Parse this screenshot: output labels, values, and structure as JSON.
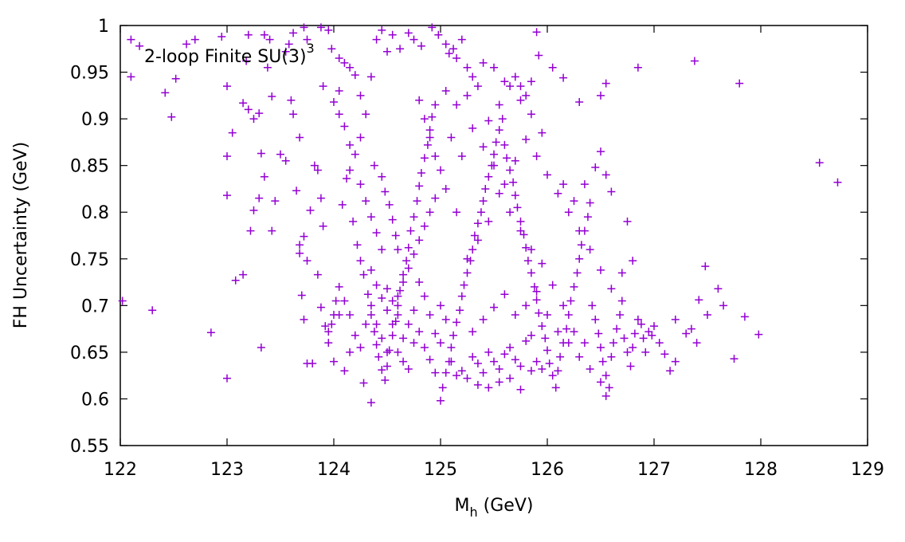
{
  "chart_data": {
    "type": "scatter",
    "annotation": {
      "text": "2-loop Finite SU(3)",
      "superscript": "3"
    },
    "xlabel": {
      "main": "M",
      "subscript": "h",
      "rest": " (GeV)"
    },
    "ylabel": "FH Uncertainty (GeV)",
    "xlim": [
      122,
      129
    ],
    "ylim": [
      0.55,
      1.0
    ],
    "x_ticks": [
      "122",
      "123",
      "124",
      "125",
      "126",
      "127",
      "128",
      "129"
    ],
    "y_ticks": [
      "0.55",
      "0.6",
      "0.65",
      "0.7",
      "0.75",
      "0.8",
      "0.85",
      "0.9",
      "0.95",
      "1"
    ],
    "grid": false,
    "marker": "plus",
    "color": "#9400d3",
    "points": [
      [
        122.02,
        0.705
      ],
      [
        122.1,
        0.985
      ],
      [
        122.18,
        0.978
      ],
      [
        122.1,
        0.945
      ],
      [
        122.42,
        0.928
      ],
      [
        122.48,
        0.902
      ],
      [
        122.52,
        0.943
      ],
      [
        122.62,
        0.98
      ],
      [
        122.7,
        0.985
      ],
      [
        122.95,
        0.988
      ],
      [
        123.0,
        0.935
      ],
      [
        123.05,
        0.885
      ],
      [
        123.0,
        0.86
      ],
      [
        123.2,
        0.99
      ],
      [
        123.18,
        0.962
      ],
      [
        123.15,
        0.917
      ],
      [
        123.2,
        0.91
      ],
      [
        123.25,
        0.9
      ],
      [
        123.3,
        0.906
      ],
      [
        123.35,
        0.99
      ],
      [
        123.4,
        0.985
      ],
      [
        123.38,
        0.955
      ],
      [
        123.42,
        0.924
      ],
      [
        123.55,
        0.972
      ],
      [
        123.58,
        0.98
      ],
      [
        123.62,
        0.992
      ],
      [
        123.72,
        0.998
      ],
      [
        123.75,
        0.985
      ],
      [
        123.88,
        0.998
      ],
      [
        123.95,
        0.995
      ],
      [
        123.98,
        0.975
      ],
      [
        124.05,
        0.965
      ],
      [
        124.1,
        0.96
      ],
      [
        124.15,
        0.955
      ],
      [
        124.2,
        0.947
      ],
      [
        123.9,
        0.935
      ],
      [
        124.05,
        0.93
      ],
      [
        124.25,
        0.925
      ],
      [
        124.35,
        0.945
      ],
      [
        124.4,
        0.985
      ],
      [
        124.45,
        0.995
      ],
      [
        124.55,
        0.99
      ],
      [
        124.5,
        0.972
      ],
      [
        124.62,
        0.975
      ],
      [
        124.7,
        0.992
      ],
      [
        124.75,
        0.985
      ],
      [
        124.82,
        0.978
      ],
      [
        124.92,
        0.998
      ],
      [
        124.98,
        0.99
      ],
      [
        125.05,
        0.98
      ],
      [
        125.12,
        0.975
      ],
      [
        125.08,
        0.97
      ],
      [
        125.15,
        0.965
      ],
      [
        125.2,
        0.985
      ],
      [
        125.25,
        0.955
      ],
      [
        125.3,
        0.945
      ],
      [
        125.4,
        0.96
      ],
      [
        125.5,
        0.955
      ],
      [
        125.6,
        0.94
      ],
      [
        125.7,
        0.945
      ],
      [
        125.75,
        0.935
      ],
      [
        125.8,
        0.925
      ],
      [
        125.85,
        0.94
      ],
      [
        125.9,
        0.993
      ],
      [
        125.92,
        0.968
      ],
      [
        126.05,
        0.955
      ],
      [
        126.15,
        0.944
      ],
      [
        126.3,
        0.918
      ],
      [
        126.5,
        0.925
      ],
      [
        126.55,
        0.938
      ],
      [
        126.85,
        0.955
      ],
      [
        127.38,
        0.962
      ],
      [
        127.8,
        0.938
      ],
      [
        128.55,
        0.853
      ],
      [
        128.72,
        0.832
      ],
      [
        122.3,
        0.695
      ],
      [
        122.85,
        0.671
      ],
      [
        123.0,
        0.622
      ],
      [
        123.0,
        0.818
      ],
      [
        123.08,
        0.727
      ],
      [
        123.15,
        0.733
      ],
      [
        123.22,
        0.78
      ],
      [
        123.25,
        0.802
      ],
      [
        123.3,
        0.815
      ],
      [
        123.32,
        0.655
      ],
      [
        123.32,
        0.863
      ],
      [
        123.35,
        0.838
      ],
      [
        123.42,
        0.78
      ],
      [
        123.45,
        0.812
      ],
      [
        123.5,
        0.862
      ],
      [
        123.55,
        0.855
      ],
      [
        123.6,
        0.92
      ],
      [
        123.62,
        0.905
      ],
      [
        123.68,
        0.88
      ],
      [
        123.65,
        0.823
      ],
      [
        123.68,
        0.765
      ],
      [
        123.68,
        0.756
      ],
      [
        123.7,
        0.711
      ],
      [
        123.72,
        0.774
      ],
      [
        123.75,
        0.748
      ],
      [
        123.78,
        0.802
      ],
      [
        123.82,
        0.85
      ],
      [
        123.85,
        0.845
      ],
      [
        123.88,
        0.815
      ],
      [
        123.9,
        0.785
      ],
      [
        123.72,
        0.685
      ],
      [
        123.75,
        0.638
      ],
      [
        123.8,
        0.638
      ],
      [
        123.85,
        0.733
      ],
      [
        123.88,
        0.698
      ],
      [
        123.92,
        0.678
      ],
      [
        123.95,
        0.672
      ],
      [
        123.98,
        0.68
      ],
      [
        124.0,
        0.64
      ],
      [
        124.02,
        0.705
      ],
      [
        124.05,
        0.69
      ],
      [
        124.08,
        0.808
      ],
      [
        124.12,
        0.836
      ],
      [
        124.15,
        0.845
      ],
      [
        124.18,
        0.79
      ],
      [
        124.22,
        0.765
      ],
      [
        124.25,
        0.748
      ],
      [
        124.28,
        0.733
      ],
      [
        124.32,
        0.712
      ],
      [
        124.35,
        0.69
      ],
      [
        124.38,
        0.672
      ],
      [
        124.4,
        0.658
      ],
      [
        124.42,
        0.645
      ],
      [
        124.45,
        0.631
      ],
      [
        124.28,
        0.617
      ],
      [
        124.35,
        0.596
      ],
      [
        124.48,
        0.62
      ],
      [
        124.5,
        0.635
      ],
      [
        124.52,
        0.652
      ],
      [
        124.55,
        0.668
      ],
      [
        124.58,
        0.683
      ],
      [
        124.6,
        0.7
      ],
      [
        124.62,
        0.716
      ],
      [
        124.65,
        0.733
      ],
      [
        124.68,
        0.748
      ],
      [
        124.7,
        0.762
      ],
      [
        124.72,
        0.78
      ],
      [
        124.75,
        0.795
      ],
      [
        124.78,
        0.812
      ],
      [
        124.8,
        0.828
      ],
      [
        124.82,
        0.842
      ],
      [
        124.85,
        0.858
      ],
      [
        124.88,
        0.872
      ],
      [
        124.9,
        0.888
      ],
      [
        124.92,
        0.902
      ],
      [
        124.95,
        0.915
      ],
      [
        124.3,
        0.905
      ],
      [
        124.25,
        0.88
      ],
      [
        124.2,
        0.862
      ],
      [
        124.15,
        0.872
      ],
      [
        124.1,
        0.892
      ],
      [
        124.05,
        0.905
      ],
      [
        124.0,
        0.918
      ],
      [
        124.38,
        0.85
      ],
      [
        124.45,
        0.838
      ],
      [
        124.48,
        0.822
      ],
      [
        124.52,
        0.808
      ],
      [
        124.55,
        0.792
      ],
      [
        124.58,
        0.775
      ],
      [
        124.6,
        0.76
      ],
      [
        124.45,
        0.76
      ],
      [
        124.4,
        0.778
      ],
      [
        124.35,
        0.795
      ],
      [
        124.3,
        0.812
      ],
      [
        124.25,
        0.83
      ],
      [
        125.0,
        0.598
      ],
      [
        125.02,
        0.612
      ],
      [
        125.05,
        0.628
      ],
      [
        125.08,
        0.64
      ],
      [
        125.1,
        0.655
      ],
      [
        125.12,
        0.668
      ],
      [
        125.15,
        0.682
      ],
      [
        125.18,
        0.695
      ],
      [
        125.2,
        0.71
      ],
      [
        125.22,
        0.722
      ],
      [
        125.25,
        0.735
      ],
      [
        125.28,
        0.748
      ],
      [
        125.3,
        0.76
      ],
      [
        125.32,
        0.775
      ],
      [
        125.35,
        0.788
      ],
      [
        125.38,
        0.8
      ],
      [
        125.4,
        0.812
      ],
      [
        125.42,
        0.825
      ],
      [
        125.45,
        0.838
      ],
      [
        125.48,
        0.85
      ],
      [
        125.5,
        0.862
      ],
      [
        125.52,
        0.875
      ],
      [
        125.55,
        0.888
      ],
      [
        125.58,
        0.9
      ],
      [
        125.6,
        0.872
      ],
      [
        125.62,
        0.858
      ],
      [
        125.65,
        0.845
      ],
      [
        125.68,
        0.832
      ],
      [
        125.7,
        0.818
      ],
      [
        125.72,
        0.805
      ],
      [
        125.75,
        0.79
      ],
      [
        125.78,
        0.776
      ],
      [
        125.8,
        0.762
      ],
      [
        125.82,
        0.748
      ],
      [
        125.85,
        0.735
      ],
      [
        125.88,
        0.72
      ],
      [
        125.9,
        0.706
      ],
      [
        125.92,
        0.692
      ],
      [
        125.95,
        0.678
      ],
      [
        125.98,
        0.665
      ],
      [
        126.0,
        0.652
      ],
      [
        126.02,
        0.638
      ],
      [
        126.05,
        0.625
      ],
      [
        126.08,
        0.612
      ],
      [
        126.1,
        0.63
      ],
      [
        126.12,
        0.645
      ],
      [
        126.15,
        0.66
      ],
      [
        126.18,
        0.675
      ],
      [
        126.2,
        0.69
      ],
      [
        126.22,
        0.705
      ],
      [
        126.25,
        0.72
      ],
      [
        126.28,
        0.735
      ],
      [
        126.3,
        0.75
      ],
      [
        126.32,
        0.765
      ],
      [
        126.35,
        0.78
      ],
      [
        126.38,
        0.795
      ],
      [
        126.4,
        0.81
      ],
      [
        126.42,
        0.7
      ],
      [
        126.45,
        0.685
      ],
      [
        126.48,
        0.67
      ],
      [
        126.5,
        0.655
      ],
      [
        126.52,
        0.64
      ],
      [
        126.55,
        0.625
      ],
      [
        126.58,
        0.612
      ],
      [
        126.6,
        0.645
      ],
      [
        126.62,
        0.66
      ],
      [
        126.65,
        0.675
      ],
      [
        126.68,
        0.69
      ],
      [
        126.7,
        0.705
      ],
      [
        126.72,
        0.665
      ],
      [
        126.75,
        0.65
      ],
      [
        126.78,
        0.635
      ],
      [
        126.8,
        0.655
      ],
      [
        126.82,
        0.67
      ],
      [
        126.85,
        0.685
      ],
      [
        126.88,
        0.68
      ],
      [
        126.9,
        0.665
      ],
      [
        126.92,
        0.65
      ],
      [
        126.95,
        0.672
      ],
      [
        126.98,
        0.668
      ],
      [
        127.0,
        0.678
      ],
      [
        127.05,
        0.66
      ],
      [
        127.1,
        0.648
      ],
      [
        127.15,
        0.63
      ],
      [
        127.2,
        0.685
      ],
      [
        127.3,
        0.67
      ],
      [
        127.35,
        0.675
      ],
      [
        127.4,
        0.66
      ],
      [
        127.42,
        0.706
      ],
      [
        127.5,
        0.69
      ],
      [
        127.6,
        0.718
      ],
      [
        127.65,
        0.7
      ],
      [
        127.75,
        0.643
      ],
      [
        127.85,
        0.688
      ],
      [
        127.98,
        0.669
      ],
      [
        127.48,
        0.742
      ],
      [
        127.2,
        0.64
      ],
      [
        125.2,
        0.63
      ],
      [
        125.25,
        0.622
      ],
      [
        125.3,
        0.645
      ],
      [
        125.35,
        0.638
      ],
      [
        125.4,
        0.628
      ],
      [
        125.45,
        0.65
      ],
      [
        125.5,
        0.64
      ],
      [
        125.55,
        0.632
      ],
      [
        125.6,
        0.648
      ],
      [
        125.65,
        0.655
      ],
      [
        125.7,
        0.642
      ],
      [
        125.75,
        0.635
      ],
      [
        125.8,
        0.662
      ],
      [
        125.85,
        0.668
      ],
      [
        125.9,
        0.64
      ],
      [
        125.95,
        0.632
      ],
      [
        125.45,
        0.612
      ],
      [
        125.55,
        0.618
      ],
      [
        125.65,
        0.622
      ],
      [
        125.75,
        0.61
      ],
      [
        125.85,
        0.63
      ],
      [
        125.35,
        0.615
      ],
      [
        125.15,
        0.625
      ],
      [
        125.1,
        0.64
      ],
      [
        125.3,
        0.672
      ],
      [
        125.4,
        0.685
      ],
      [
        125.5,
        0.698
      ],
      [
        125.6,
        0.712
      ],
      [
        125.7,
        0.69
      ],
      [
        125.8,
        0.7
      ],
      [
        125.9,
        0.715
      ],
      [
        126.0,
        0.69
      ],
      [
        126.1,
        0.672
      ],
      [
        126.2,
        0.66
      ],
      [
        126.3,
        0.645
      ],
      [
        126.4,
        0.632
      ],
      [
        126.5,
        0.618
      ],
      [
        126.55,
        0.603
      ],
      [
        126.35,
        0.66
      ],
      [
        126.25,
        0.672
      ],
      [
        126.15,
        0.7
      ],
      [
        126.05,
        0.722
      ],
      [
        125.95,
        0.745
      ],
      [
        125.85,
        0.76
      ],
      [
        125.75,
        0.78
      ],
      [
        125.65,
        0.8
      ],
      [
        125.55,
        0.82
      ],
      [
        125.45,
        0.79
      ],
      [
        125.35,
        0.77
      ],
      [
        125.25,
        0.75
      ],
      [
        125.15,
        0.8
      ],
      [
        125.05,
        0.825
      ],
      [
        125.0,
        0.845
      ],
      [
        124.95,
        0.86
      ],
      [
        124.9,
        0.88
      ],
      [
        124.85,
        0.9
      ],
      [
        124.8,
        0.92
      ],
      [
        125.1,
        0.88
      ],
      [
        125.2,
        0.86
      ],
      [
        125.3,
        0.89
      ],
      [
        125.4,
        0.87
      ],
      [
        125.5,
        0.85
      ],
      [
        125.6,
        0.83
      ],
      [
        125.7,
        0.855
      ],
      [
        125.8,
        0.878
      ],
      [
        125.9,
        0.86
      ],
      [
        126.0,
        0.84
      ],
      [
        126.1,
        0.82
      ],
      [
        126.2,
        0.8
      ],
      [
        126.3,
        0.78
      ],
      [
        126.4,
        0.76
      ],
      [
        126.5,
        0.738
      ],
      [
        126.6,
        0.718
      ],
      [
        126.7,
        0.735
      ],
      [
        126.8,
        0.748
      ],
      [
        126.75,
        0.79
      ],
      [
        126.6,
        0.822
      ],
      [
        126.55,
        0.84
      ],
      [
        126.5,
        0.865
      ],
      [
        126.45,
        0.848
      ],
      [
        126.35,
        0.83
      ],
      [
        126.25,
        0.812
      ],
      [
        126.15,
        0.83
      ],
      [
        125.95,
        0.885
      ],
      [
        125.85,
        0.905
      ],
      [
        125.75,
        0.92
      ],
      [
        125.65,
        0.935
      ],
      [
        125.55,
        0.915
      ],
      [
        125.45,
        0.898
      ],
      [
        125.35,
        0.935
      ],
      [
        125.25,
        0.925
      ],
      [
        125.15,
        0.915
      ],
      [
        125.05,
        0.93
      ],
      [
        124.6,
        0.65
      ],
      [
        124.65,
        0.64
      ],
      [
        124.7,
        0.632
      ],
      [
        124.75,
        0.66
      ],
      [
        124.8,
        0.672
      ],
      [
        124.85,
        0.655
      ],
      [
        124.9,
        0.642
      ],
      [
        124.95,
        0.628
      ],
      [
        124.55,
        0.68
      ],
      [
        124.5,
        0.695
      ],
      [
        124.45,
        0.708
      ],
      [
        124.4,
        0.722
      ],
      [
        124.35,
        0.738
      ],
      [
        124.6,
        0.71
      ],
      [
        124.65,
        0.725
      ],
      [
        124.7,
        0.74
      ],
      [
        124.75,
        0.755
      ],
      [
        124.8,
        0.77
      ],
      [
        124.85,
        0.785
      ],
      [
        124.9,
        0.8
      ],
      [
        124.95,
        0.815
      ],
      [
        125.0,
        0.7
      ],
      [
        125.05,
        0.685
      ],
      [
        125.0,
        0.66
      ],
      [
        124.95,
        0.67
      ],
      [
        124.9,
        0.69
      ],
      [
        124.85,
        0.71
      ],
      [
        124.8,
        0.725
      ],
      [
        124.75,
        0.695
      ],
      [
        124.7,
        0.68
      ],
      [
        124.65,
        0.665
      ],
      [
        124.6,
        0.69
      ],
      [
        124.55,
        0.705
      ],
      [
        124.5,
        0.718
      ],
      [
        124.5,
        0.65
      ],
      [
        124.45,
        0.665
      ],
      [
        124.4,
        0.68
      ],
      [
        124.35,
        0.7
      ],
      [
        124.3,
        0.68
      ],
      [
        124.25,
        0.655
      ],
      [
        124.2,
        0.668
      ],
      [
        124.15,
        0.65
      ],
      [
        124.1,
        0.63
      ],
      [
        124.15,
        0.69
      ],
      [
        124.1,
        0.705
      ],
      [
        124.05,
        0.72
      ],
      [
        124.0,
        0.69
      ],
      [
        123.95,
        0.66
      ]
    ]
  }
}
